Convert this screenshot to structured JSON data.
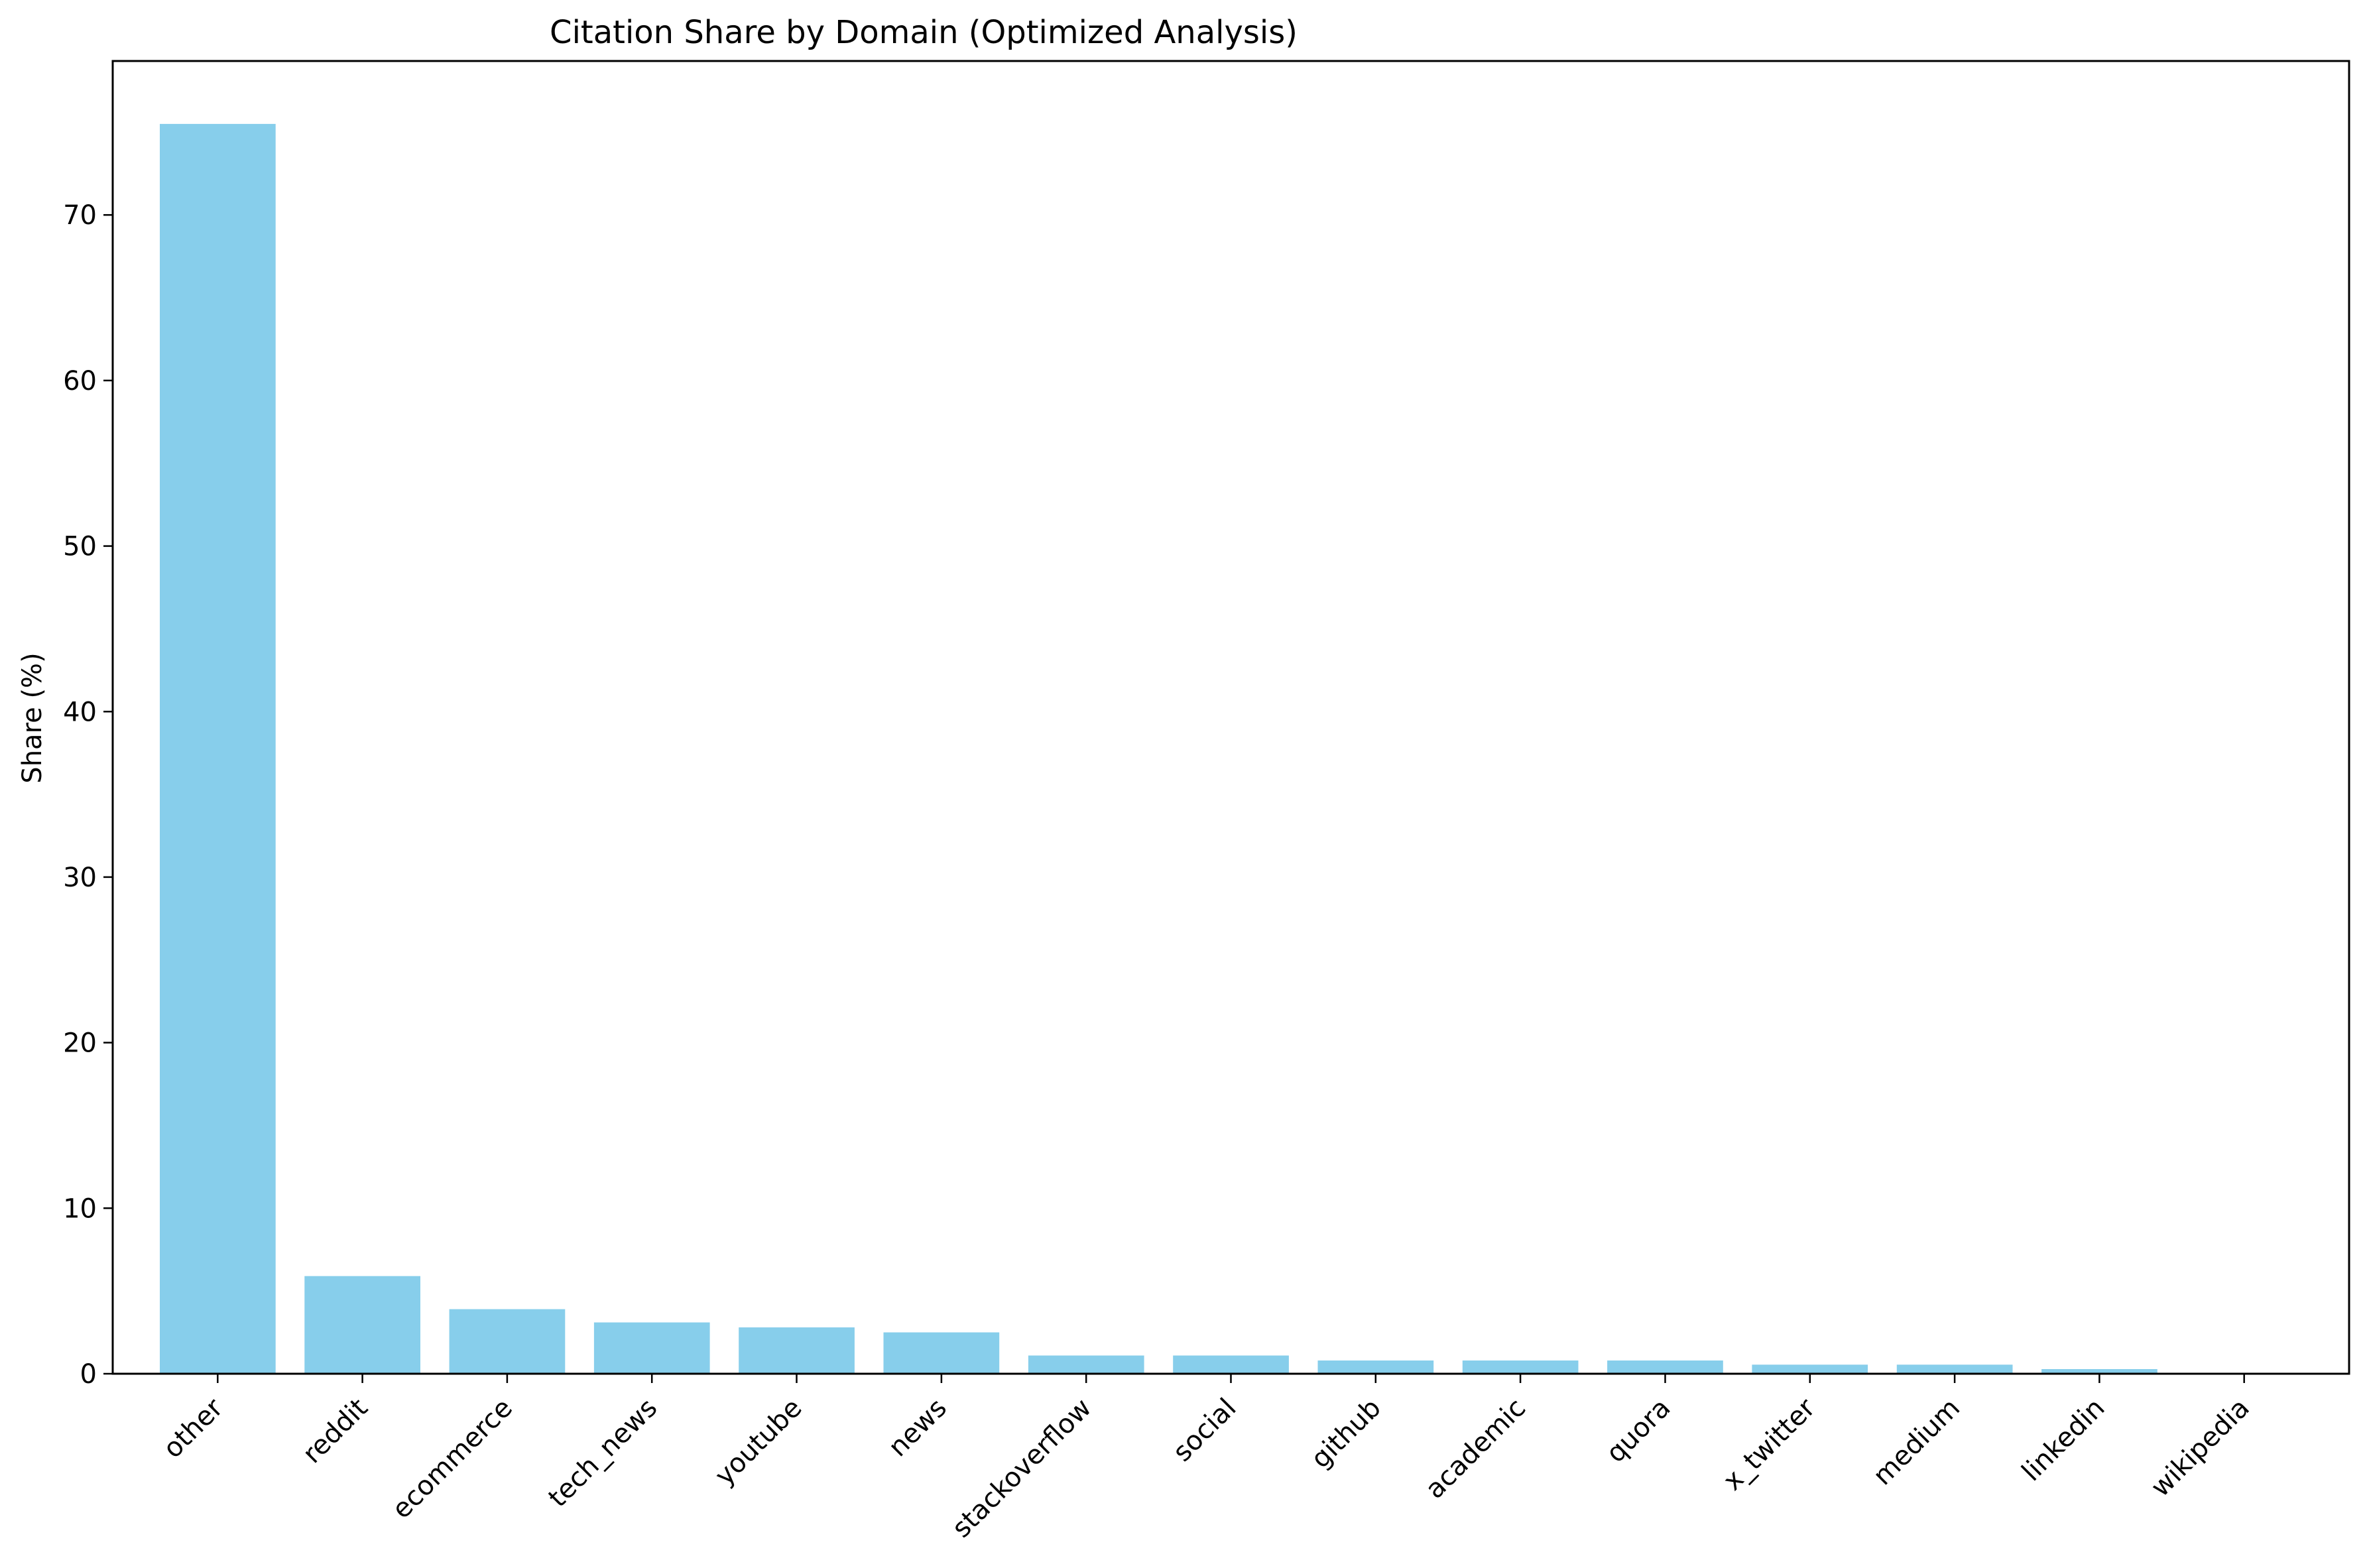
{
  "chart_data": {
    "type": "bar",
    "title": "Citation Share by Domain (Optimized Analysis)",
    "xlabel": "",
    "ylabel": "Share (%)",
    "categories": [
      "other",
      "reddit",
      "ecommerce",
      "tech_news",
      "youtube",
      "news",
      "stackoverflow",
      "social",
      "github",
      "academic",
      "quora",
      "x_twitter",
      "medium",
      "linkedin",
      "wikipedia"
    ],
    "values": [
      75.5,
      5.9,
      3.9,
      3.1,
      2.8,
      2.5,
      1.1,
      1.1,
      0.8,
      0.8,
      0.8,
      0.55,
      0.55,
      0.28,
      0.0
    ],
    "yticks": [
      0,
      10,
      20,
      30,
      40,
      50,
      60,
      70
    ],
    "ylim": [
      0,
      79.3
    ],
    "grid": false,
    "colors": {
      "bar": "#87ceeb",
      "axis": "#000000",
      "text": "#000000"
    }
  }
}
